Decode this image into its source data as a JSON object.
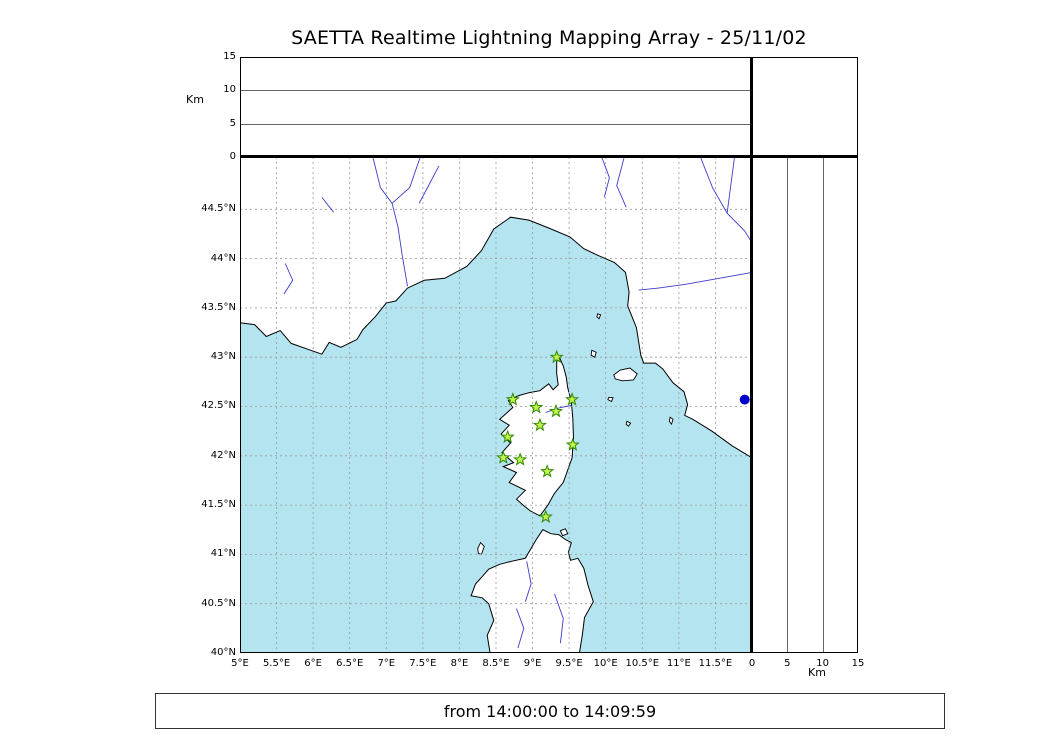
{
  "title": "SAETTA Realtime Lightning Mapping Array - 25/11/02",
  "footer": {
    "time_range": "from 14:00:00 to 14:09:59"
  },
  "colors": {
    "sea": "#b4e4f0",
    "land": "#ffffff",
    "coast": "#000000",
    "river": "#3c3ccc",
    "grid": "#999999",
    "panel_grid": "#666666",
    "station_fill": "#c4f24e",
    "station_stroke": "#2e8b00",
    "dot": "#0000cd"
  },
  "chart_data": {
    "type": "map",
    "title": "SAETTA Realtime Lightning Mapping Array - 25/11/02",
    "subtitle": "from 14:00:00 to 14:09:59",
    "extent": {
      "lon_min": 5,
      "lon_max": 12,
      "lat_min": 40,
      "lat_max": 45.03
    },
    "lon_ticks": [
      {
        "v": 5,
        "label": "5°E"
      },
      {
        "v": 5.5,
        "label": "5.5°E"
      },
      {
        "v": 6,
        "label": "6°E"
      },
      {
        "v": 6.5,
        "label": "6.5°E"
      },
      {
        "v": 7,
        "label": "7°E"
      },
      {
        "v": 7.5,
        "label": "7.5°E"
      },
      {
        "v": 8,
        "label": "8°E"
      },
      {
        "v": 8.5,
        "label": "8.5°E"
      },
      {
        "v": 9,
        "label": "9°E"
      },
      {
        "v": 9.5,
        "label": "9.5°E"
      },
      {
        "v": 10,
        "label": "10°E"
      },
      {
        "v": 10.5,
        "label": "10.5°E"
      },
      {
        "v": 11,
        "label": "11°E"
      },
      {
        "v": 11.5,
        "label": "11.5°E"
      }
    ],
    "lat_ticks": [
      {
        "v": 40,
        "label": "40°N"
      },
      {
        "v": 40.5,
        "label": "40.5°N"
      },
      {
        "v": 41,
        "label": "41°N"
      },
      {
        "v": 41.5,
        "label": "41.5°N"
      },
      {
        "v": 42,
        "label": "42°N"
      },
      {
        "v": 42.5,
        "label": "42.5°N"
      },
      {
        "v": 43,
        "label": "43°N"
      },
      {
        "v": 43.5,
        "label": "43.5°N"
      },
      {
        "v": 44,
        "label": "44°N"
      },
      {
        "v": 44.5,
        "label": "44.5°N"
      }
    ],
    "alt_axis": {
      "label": "Km",
      "min": 0,
      "max": 15,
      "ticks": [
        {
          "v": 0,
          "label": "0"
        },
        {
          "v": 5,
          "label": "5"
        },
        {
          "v": 10,
          "label": "10"
        },
        {
          "v": 15,
          "label": "15"
        }
      ],
      "gridlines": [
        5,
        10
      ]
    },
    "stations": [
      {
        "lon": 9.33,
        "lat": 43.0
      },
      {
        "lon": 8.73,
        "lat": 42.57
      },
      {
        "lon": 9.05,
        "lat": 42.49
      },
      {
        "lon": 9.32,
        "lat": 42.45
      },
      {
        "lon": 9.54,
        "lat": 42.57
      },
      {
        "lon": 8.66,
        "lat": 42.19
      },
      {
        "lon": 9.1,
        "lat": 42.31
      },
      {
        "lon": 9.55,
        "lat": 42.11
      },
      {
        "lon": 8.6,
        "lat": 41.98
      },
      {
        "lon": 8.83,
        "lat": 41.96
      },
      {
        "lon": 9.2,
        "lat": 41.84
      },
      {
        "lon": 9.18,
        "lat": 41.38
      }
    ],
    "blue_dot": {
      "lon": 11.9,
      "lat": 42.57
    },
    "basemap": {
      "coast_mainland": [
        [
          5.0,
          43.35
        ],
        [
          5.2,
          43.33
        ],
        [
          5.36,
          43.21
        ],
        [
          5.55,
          43.27
        ],
        [
          5.7,
          43.14
        ],
        [
          5.93,
          43.08
        ],
        [
          6.12,
          43.03
        ],
        [
          6.22,
          43.15
        ],
        [
          6.38,
          43.1
        ],
        [
          6.6,
          43.18
        ],
        [
          6.68,
          43.28
        ],
        [
          6.85,
          43.41
        ],
        [
          7.0,
          43.55
        ],
        [
          7.13,
          43.57
        ],
        [
          7.29,
          43.7
        ],
        [
          7.52,
          43.78
        ],
        [
          7.8,
          43.8
        ],
        [
          8.1,
          43.92
        ],
        [
          8.3,
          44.08
        ],
        [
          8.47,
          44.3
        ],
        [
          8.7,
          44.42
        ],
        [
          8.95,
          44.39
        ],
        [
          9.22,
          44.31
        ],
        [
          9.51,
          44.22
        ],
        [
          9.7,
          44.1
        ],
        [
          9.9,
          44.03
        ],
        [
          10.12,
          43.96
        ],
        [
          10.27,
          43.86
        ],
        [
          10.32,
          43.66
        ],
        [
          10.3,
          43.52
        ],
        [
          10.42,
          43.3
        ],
        [
          10.48,
          43.02
        ],
        [
          10.52,
          42.94
        ],
        [
          10.68,
          42.94
        ],
        [
          10.78,
          42.88
        ],
        [
          10.92,
          42.74
        ],
        [
          11.07,
          42.65
        ],
        [
          11.12,
          42.52
        ],
        [
          11.08,
          42.41
        ],
        [
          11.19,
          42.37
        ],
        [
          11.45,
          42.25
        ],
        [
          11.73,
          42.1
        ],
        [
          12.0,
          41.98
        ]
      ],
      "corsica": [
        [
          9.36,
          43.01
        ],
        [
          9.42,
          42.91
        ],
        [
          9.46,
          42.8
        ],
        [
          9.48,
          42.69
        ],
        [
          9.53,
          42.55
        ],
        [
          9.55,
          42.38
        ],
        [
          9.56,
          42.18
        ],
        [
          9.54,
          41.98
        ],
        [
          9.42,
          41.73
        ],
        [
          9.3,
          41.62
        ],
        [
          9.21,
          41.5
        ],
        [
          9.1,
          41.39
        ],
        [
          8.97,
          41.44
        ],
        [
          8.87,
          41.5
        ],
        [
          8.78,
          41.56
        ],
        [
          8.9,
          41.65
        ],
        [
          8.68,
          41.73
        ],
        [
          8.78,
          41.83
        ],
        [
          8.6,
          41.89
        ],
        [
          8.74,
          41.93
        ],
        [
          8.58,
          42.03
        ],
        [
          8.7,
          42.13
        ],
        [
          8.57,
          42.22
        ],
        [
          8.68,
          42.31
        ],
        [
          8.55,
          42.37
        ],
        [
          8.73,
          42.49
        ],
        [
          8.67,
          42.56
        ],
        [
          8.81,
          42.61
        ],
        [
          8.95,
          42.64
        ],
        [
          9.1,
          42.66
        ],
        [
          9.22,
          42.73
        ],
        [
          9.28,
          42.67
        ],
        [
          9.35,
          42.72
        ],
        [
          9.33,
          42.83
        ],
        [
          9.33,
          42.95
        ]
      ],
      "sardinia": [
        [
          8.42,
          40.0
        ],
        [
          8.38,
          40.18
        ],
        [
          8.47,
          40.33
        ],
        [
          8.4,
          40.5
        ],
        [
          8.31,
          40.56
        ],
        [
          8.16,
          40.58
        ],
        [
          8.22,
          40.7
        ],
        [
          8.33,
          40.79
        ],
        [
          8.4,
          40.85
        ],
        [
          8.55,
          40.9
        ],
        [
          8.71,
          40.93
        ],
        [
          8.9,
          40.96
        ],
        [
          9.05,
          41.15
        ],
        [
          9.14,
          41.25
        ],
        [
          9.25,
          41.21
        ],
        [
          9.36,
          41.2
        ],
        [
          9.45,
          41.15
        ],
        [
          9.53,
          41.12
        ],
        [
          9.49,
          41.02
        ],
        [
          9.52,
          40.94
        ],
        [
          9.62,
          40.96
        ],
        [
          9.7,
          40.86
        ],
        [
          9.76,
          40.68
        ],
        [
          9.83,
          40.52
        ],
        [
          9.71,
          40.36
        ],
        [
          9.68,
          40.18
        ],
        [
          9.64,
          40.0
        ]
      ],
      "islands": [
        [
          [
            10.11,
            42.82
          ],
          [
            10.2,
            42.87
          ],
          [
            10.33,
            42.89
          ],
          [
            10.43,
            42.83
          ],
          [
            10.38,
            42.77
          ],
          [
            10.23,
            42.76
          ],
          [
            10.13,
            42.78
          ]
        ],
        [
          [
            9.81,
            43.07
          ],
          [
            9.87,
            43.05
          ],
          [
            9.85,
            43.0
          ],
          [
            9.8,
            43.02
          ]
        ],
        [
          [
            9.89,
            43.44
          ],
          [
            9.93,
            43.43
          ],
          [
            9.91,
            43.39
          ],
          [
            9.88,
            43.41
          ]
        ],
        [
          [
            10.04,
            42.59
          ],
          [
            10.1,
            42.59
          ],
          [
            10.08,
            42.55
          ],
          [
            10.03,
            42.57
          ]
        ],
        [
          [
            10.29,
            42.35
          ],
          [
            10.34,
            42.33
          ],
          [
            10.31,
            42.3
          ],
          [
            10.28,
            42.32
          ]
        ],
        [
          [
            10.88,
            42.39
          ],
          [
            10.92,
            42.37
          ],
          [
            10.9,
            42.32
          ],
          [
            10.87,
            42.35
          ]
        ],
        [
          [
            8.25,
            41.06
          ],
          [
            8.29,
            41.12
          ],
          [
            8.34,
            41.08
          ],
          [
            8.3,
            41.0
          ],
          [
            8.26,
            41.01
          ]
        ],
        [
          [
            9.38,
            41.24
          ],
          [
            9.45,
            41.26
          ],
          [
            9.48,
            41.21
          ],
          [
            9.41,
            41.19
          ]
        ]
      ],
      "rivers": [
        [
          [
            5.62,
            43.95
          ],
          [
            5.72,
            43.78
          ],
          [
            5.6,
            43.64
          ]
        ],
        [
          [
            6.12,
            44.62
          ],
          [
            6.28,
            44.47
          ]
        ],
        [
          [
            6.82,
            45.02
          ],
          [
            6.92,
            44.72
          ],
          [
            7.08,
            44.56
          ],
          [
            7.16,
            44.32
          ],
          [
            7.22,
            44.02
          ],
          [
            7.29,
            43.72
          ]
        ],
        [
          [
            7.46,
            45.02
          ],
          [
            7.32,
            44.72
          ],
          [
            7.08,
            44.56
          ]
        ],
        [
          [
            7.72,
            44.94
          ],
          [
            7.55,
            44.7
          ],
          [
            7.45,
            44.56
          ]
        ],
        [
          [
            9.95,
            45.02
          ],
          [
            10.05,
            44.82
          ],
          [
            9.98,
            44.62
          ]
        ],
        [
          [
            10.25,
            45.02
          ],
          [
            10.15,
            44.74
          ],
          [
            10.28,
            44.52
          ]
        ],
        [
          [
            12.0,
            43.86
          ],
          [
            11.55,
            43.8
          ],
          [
            11.1,
            43.74
          ],
          [
            10.72,
            43.7
          ],
          [
            10.45,
            43.68
          ]
        ],
        [
          [
            11.3,
            45.02
          ],
          [
            11.46,
            44.72
          ],
          [
            11.66,
            44.46
          ],
          [
            11.9,
            44.28
          ],
          [
            12.0,
            44.16
          ]
        ],
        [
          [
            11.76,
            45.02
          ],
          [
            11.66,
            44.46
          ]
        ],
        [
          [
            9.18,
            42.44
          ],
          [
            9.38,
            42.49
          ],
          [
            9.53,
            42.51
          ]
        ],
        [
          [
            8.92,
            40.93
          ],
          [
            8.98,
            40.7
          ],
          [
            8.9,
            40.52
          ]
        ],
        [
          [
            8.78,
            40.45
          ],
          [
            8.88,
            40.25
          ],
          [
            8.8,
            40.05
          ]
        ],
        [
          [
            9.3,
            40.6
          ],
          [
            9.42,
            40.35
          ],
          [
            9.38,
            40.1
          ]
        ]
      ]
    }
  }
}
